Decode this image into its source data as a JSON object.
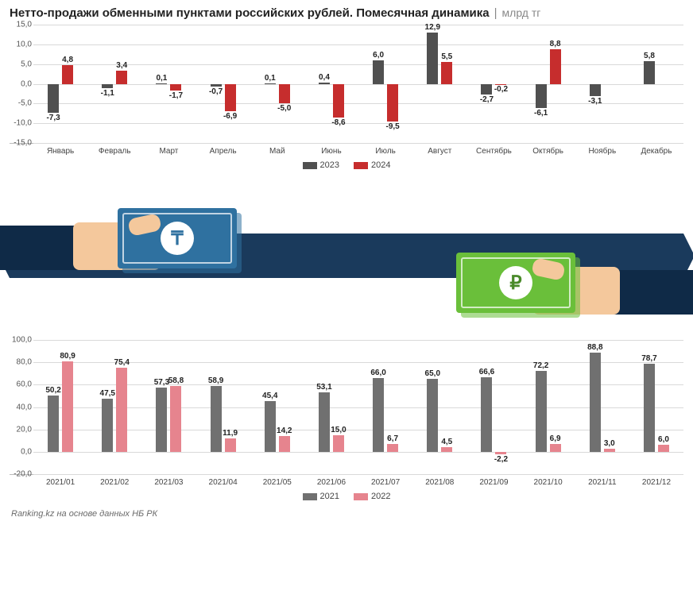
{
  "title": "Нетто-продажи обменными пунктами российских рублей. Помесячная динамика",
  "unit": "млрд тг",
  "source": "Ranking.kz на основе данных НБ РК",
  "colors": {
    "series_2023": "#505050",
    "series_2024": "#c62d2d",
    "series_2021": "#707070",
    "series_2022": "#e6848e",
    "bg": "#ffffff",
    "grid": "#d9d9d9",
    "ribbon": "#1a3a5c",
    "cash_tenge": "#2f71a0",
    "cash_ruble": "#6abf3a",
    "skin": "#f4c89c",
    "text": "#222222",
    "label_fontsize": 10
  },
  "chart_top": {
    "type": "bar",
    "categories": [
      "Январь",
      "Февраль",
      "Март",
      "Апрель",
      "Май",
      "Июнь",
      "Июль",
      "Август",
      "Сентябрь",
      "Октябрь",
      "Ноябрь",
      "Декабрь"
    ],
    "series": [
      {
        "name": "2023",
        "color": "#505050",
        "values": [
          "-7,3",
          "-1,1",
          "0,1",
          "-0,7",
          "0,1",
          "0,4",
          "6,0",
          "12,9",
          "-2,7",
          "-6,1",
          "-3,1",
          "5,8"
        ],
        "raw": [
          -7.3,
          -1.1,
          0.1,
          -0.7,
          0.1,
          0.4,
          6.0,
          12.9,
          -2.7,
          -6.1,
          -3.1,
          5.8
        ]
      },
      {
        "name": "2024",
        "color": "#c62d2d",
        "values": [
          "4,8",
          "3,4",
          "-1,7",
          "-6,9",
          "-5,0",
          "-8,6",
          "-9,5",
          "5,5",
          "-0,2",
          "8,8",
          null,
          null
        ],
        "raw": [
          4.8,
          3.4,
          -1.7,
          -6.9,
          -5.0,
          -8.6,
          -9.5,
          5.5,
          -0.2,
          8.8,
          null,
          null
        ]
      }
    ],
    "ylim": [
      -15,
      15
    ],
    "ytick_step": 5,
    "yticks": [
      "15,0",
      "10,0",
      "5,0",
      "0,0",
      "-5,0",
      "-10,0",
      "-15,0"
    ]
  },
  "chart_bottom": {
    "type": "bar",
    "categories": [
      "2021/01",
      "2021/02",
      "2021/03",
      "2021/04",
      "2021/05",
      "2021/06",
      "2021/07",
      "2021/08",
      "2021/09",
      "2021/10",
      "2021/11",
      "2021/12"
    ],
    "series": [
      {
        "name": "2021",
        "color": "#707070",
        "values": [
          "50,2",
          "47,5",
          "57,3",
          "58,9",
          "45,4",
          "53,1",
          "66,0",
          "65,0",
          "66,6",
          "72,2",
          "88,8",
          "78,7"
        ],
        "raw": [
          50.2,
          47.5,
          57.3,
          58.9,
          45.4,
          53.1,
          66.0,
          65.0,
          66.6,
          72.2,
          88.8,
          78.7
        ]
      },
      {
        "name": "2022",
        "color": "#e6848e",
        "values": [
          "80,9",
          "75,4",
          "58,8",
          "11,9",
          "14,2",
          "15,0",
          "6,7",
          "4,5",
          "-2,2",
          "6,9",
          "3,0",
          "6,0"
        ],
        "raw": [
          80.9,
          75.4,
          58.8,
          11.9,
          14.2,
          15.0,
          6.7,
          4.5,
          -2.2,
          6.9,
          3.0,
          6.0
        ]
      }
    ],
    "ylim": [
      -20,
      100
    ],
    "ytick_step": 20,
    "yticks": [
      "100,0",
      "80,0",
      "60,0",
      "40,0",
      "20,0",
      "0,0",
      "-20,0"
    ]
  },
  "infographic": {
    "left_symbol": "₸",
    "right_symbol": "₽"
  }
}
